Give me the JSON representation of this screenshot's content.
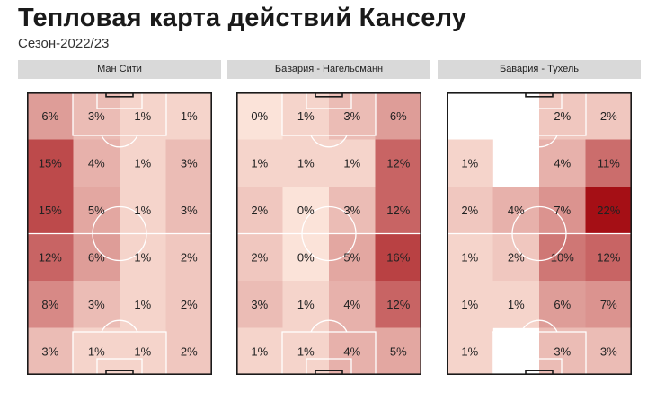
{
  "title": "Тепловая карта действий Канселу",
  "subtitle": "Сезон-2022/23",
  "chart_data": [
    {
      "type": "heatmap",
      "title": "Ман Сити",
      "values": [
        [
          6,
          3,
          1,
          1
        ],
        [
          15,
          4,
          1,
          3
        ],
        [
          15,
          5,
          1,
          3
        ],
        [
          12,
          6,
          1,
          2
        ],
        [
          8,
          3,
          1,
          2
        ],
        [
          3,
          1,
          1,
          2
        ]
      ]
    },
    {
      "type": "heatmap",
      "title": "Бавария - Нагельсманн",
      "values": [
        [
          0,
          1,
          3,
          6
        ],
        [
          1,
          1,
          1,
          12
        ],
        [
          2,
          0,
          3,
          12
        ],
        [
          2,
          0,
          5,
          16
        ],
        [
          3,
          1,
          4,
          12
        ],
        [
          1,
          1,
          4,
          5
        ]
      ]
    },
    {
      "type": "heatmap",
      "title": "Бавария - Тухель",
      "values": [
        [
          null,
          null,
          2,
          2
        ],
        [
          1,
          null,
          4,
          11
        ],
        [
          2,
          4,
          7,
          22
        ],
        [
          1,
          2,
          10,
          12
        ],
        [
          1,
          1,
          6,
          7
        ],
        [
          1,
          null,
          3,
          3
        ]
      ]
    }
  ],
  "colors": {
    "scale_low": "#fbe3d9",
    "scale_high": "#a50f15",
    "pitch_lines": "#ffffff",
    "header_bg": "#d9d9d9"
  }
}
